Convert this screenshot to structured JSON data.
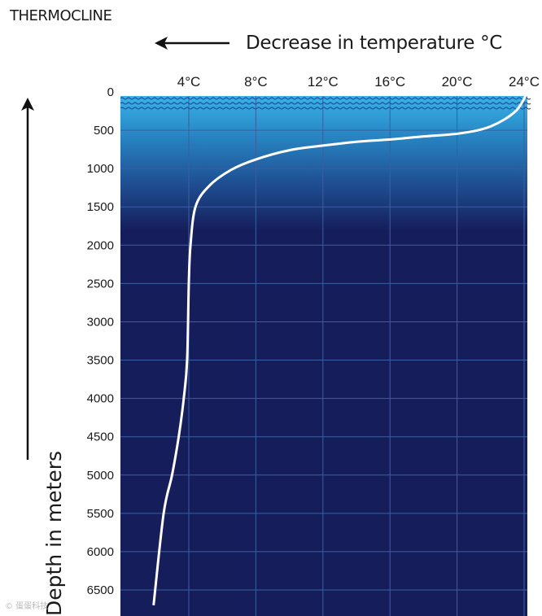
{
  "chart_data": {
    "type": "line",
    "title": "THERMOCLINE",
    "xlabel": "Decrease in temperature °C",
    "ylabel": "Depth in meters",
    "x_ticks": [
      "4°C",
      "8°C",
      "12°C",
      "16°C",
      "20°C",
      "24°C"
    ],
    "x_tick_values": [
      4,
      8,
      12,
      16,
      20,
      24
    ],
    "y_ticks": [
      "0",
      "500",
      "1000",
      "1500",
      "2000",
      "2500",
      "3000",
      "3500",
      "4000",
      "4500",
      "5000",
      "5500",
      "6000",
      "6500"
    ],
    "y_tick_values": [
      0,
      500,
      1000,
      1500,
      2000,
      2500,
      3000,
      3500,
      4000,
      4500,
      5000,
      5500,
      6000,
      6500
    ],
    "xlim": [
      26,
      0
    ],
    "ylim": [
      0,
      6750
    ],
    "grid": true,
    "series": [
      {
        "x": [
          24.2,
          23.5,
          22.0,
          20.2,
          18.0,
          16.0,
          14.0,
          12.0,
          10.0,
          8.0,
          6.5,
          5.2,
          4.4,
          4.1,
          4.0,
          3.9,
          3.7,
          3.4,
          3.0,
          2.5,
          1.9
        ],
        "y": [
          0,
          250,
          450,
          540,
          580,
          620,
          650,
          700,
          760,
          880,
          1020,
          1230,
          1500,
          2000,
          2500,
          3500,
          4000,
          4500,
          5000,
          5500,
          6700
        ]
      }
    ],
    "colors": {
      "deep_water": "#161d5b",
      "surface_water": "#3bb2e6",
      "curve": "#ffffff",
      "grid": "#3a5fa0"
    }
  },
  "watermark": "© 蛋蛋科技"
}
